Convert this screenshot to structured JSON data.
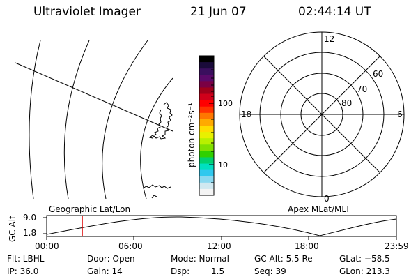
{
  "header": {
    "instrument": "Ultraviolet Imager",
    "date": "21 Jun 07",
    "time": "02:44:14 UT"
  },
  "colorbar": {
    "unit_label": "photon cm⁻²s⁻¹",
    "ticks": [
      "100",
      "10"
    ],
    "colors": [
      "#000000",
      "#1a0b3a",
      "#3a0f5e",
      "#5a0a6a",
      "#7a0044",
      "#a0001a",
      "#d0001a",
      "#ff0000",
      "#ff3300",
      "#ff7700",
      "#ffaa00",
      "#ffdd00",
      "#e8f000",
      "#b8f000",
      "#80e000",
      "#30d000",
      "#00d070",
      "#00e0c0",
      "#30c8ee",
      "#8ad8f0",
      "#d0e8f0",
      "#f4f4f4"
    ]
  },
  "polar": {
    "hour_labels": [
      "12",
      "18",
      "6",
      "0"
    ],
    "lat_labels": [
      "60",
      "70",
      "80"
    ]
  },
  "timeline": {
    "y_axis_label": "GC Alt",
    "y_ticks": [
      "9.0",
      "1.8"
    ],
    "left_label": "Geographic Lat/Lon",
    "right_label": "Apex MLat/MLT",
    "x_ticks": [
      "00:00",
      "06:00",
      "12:00",
      "18:00",
      "23:59"
    ],
    "marker_time": "02:44:14",
    "marker_color": "#dd0000"
  },
  "status": {
    "filter": "Flt: LBHL",
    "door": "Door: Open",
    "mode": "Mode: Normal",
    "gc_alt": "GC Alt: 5.5 Re",
    "glat": "GLat: −58.5",
    "ip": "IP: 36.0",
    "gain": "Gain: 14",
    "dsp_label": "Dsp:",
    "dsp_value": "1.5",
    "seq": "Seq: 39",
    "glon": "GLon: 213.3"
  }
}
